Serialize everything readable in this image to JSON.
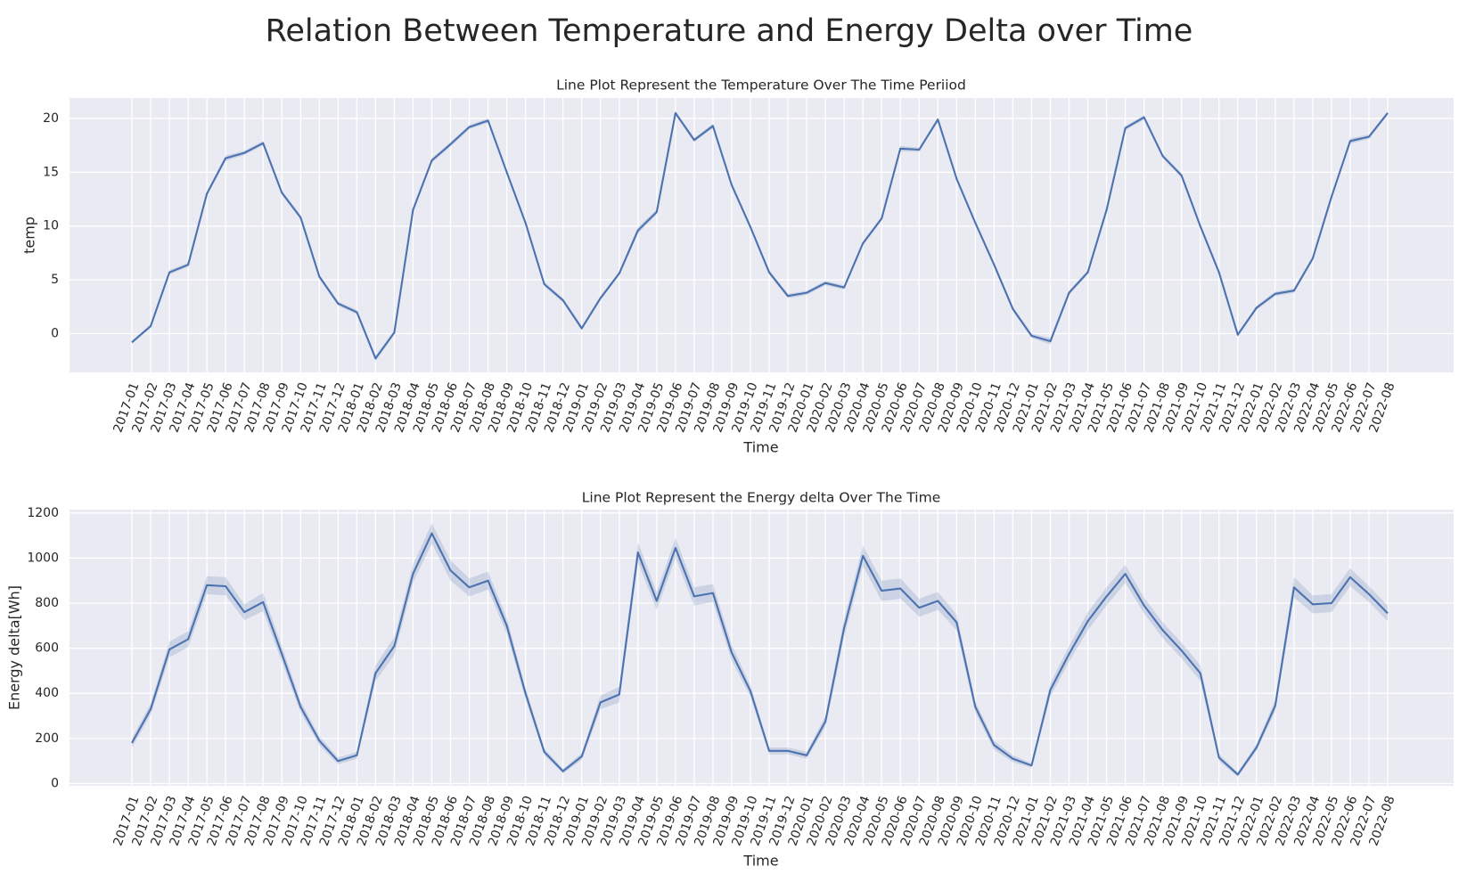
{
  "suptitle": "Relation Between Temperature and Energy Delta over Time",
  "style": {
    "panel_bg": "#eaeaf2",
    "line_color": "#4c72b0",
    "band_color": "#4c72b0"
  },
  "chart_data": [
    {
      "type": "line",
      "title": "Line Plot Represent the Temperature Over The Time Periiod",
      "xlabel": "Time",
      "ylabel": "temp",
      "ylim": [
        -3.6,
        21.9
      ],
      "yticks": [
        0,
        5,
        10,
        15,
        20
      ],
      "grid": true,
      "x": [
        "2017-01",
        "2017-02",
        "2017-03",
        "2017-04",
        "2017-05",
        "2017-06",
        "2017-07",
        "2017-08",
        "2017-09",
        "2017-10",
        "2017-11",
        "2017-12",
        "2018-01",
        "2018-02",
        "2018-03",
        "2018-04",
        "2018-05",
        "2018-06",
        "2018-07",
        "2018-08",
        "2018-09",
        "2018-10",
        "2018-11",
        "2018-12",
        "2019-01",
        "2019-02",
        "2019-03",
        "2019-04",
        "2019-05",
        "2019-06",
        "2019-07",
        "2019-08",
        "2019-09",
        "2019-10",
        "2019-11",
        "2019-12",
        "2020-01",
        "2020-02",
        "2020-03",
        "2020-04",
        "2020-05",
        "2020-06",
        "2020-07",
        "2020-08",
        "2020-09",
        "2020-10",
        "2020-11",
        "2020-12",
        "2021-01",
        "2021-02",
        "2021-03",
        "2021-04",
        "2021-05",
        "2021-06",
        "2021-07",
        "2021-08",
        "2021-09",
        "2021-10",
        "2021-11",
        "2021-12",
        "2022-01",
        "2022-02",
        "2022-03",
        "2022-04",
        "2022-05",
        "2022-06",
        "2022-07",
        "2022-08"
      ],
      "series": [
        {
          "values": [
            -0.8,
            0.7,
            5.7,
            6.4,
            13.0,
            16.3,
            16.8,
            17.7,
            13.1,
            10.8,
            5.3,
            2.8,
            2.0,
            -2.3,
            0.1,
            11.5,
            16.1,
            17.6,
            19.2,
            19.8,
            15.0,
            10.3,
            4.6,
            3.1,
            0.5,
            3.3,
            5.6,
            9.6,
            11.3,
            20.5,
            18.0,
            19.3,
            13.8,
            9.9,
            5.7,
            3.5,
            3.8,
            4.7,
            4.3,
            8.4,
            10.7,
            17.2,
            17.1,
            19.9,
            14.4,
            10.3,
            6.4,
            2.3,
            -0.2,
            -0.7,
            3.8,
            5.7,
            11.5,
            19.1,
            20.1,
            16.5,
            14.7,
            10.0,
            5.7,
            -0.1,
            2.4,
            3.7,
            4.0,
            7.0,
            12.7,
            17.9,
            18.3,
            20.5
          ],
          "ci_halfwidth": [
            0.15,
            0.15,
            0.2,
            0.2,
            0.2,
            0.25,
            0.2,
            0.2,
            0.2,
            0.2,
            0.2,
            0.2,
            0.2,
            0.25,
            0.2,
            0.2,
            0.2,
            0.2,
            0.2,
            0.2,
            0.2,
            0.2,
            0.2,
            0.2,
            0.2,
            0.2,
            0.2,
            0.3,
            0.2,
            0.2,
            0.2,
            0.2,
            0.2,
            0.2,
            0.2,
            0.2,
            0.2,
            0.2,
            0.2,
            0.2,
            0.2,
            0.25,
            0.2,
            0.2,
            0.2,
            0.2,
            0.2,
            0.2,
            0.2,
            0.3,
            0.2,
            0.2,
            0.2,
            0.2,
            0.2,
            0.2,
            0.2,
            0.2,
            0.2,
            0.2,
            0.2,
            0.2,
            0.2,
            0.2,
            0.2,
            0.25,
            0.2,
            0.2
          ]
        }
      ]
    },
    {
      "type": "line",
      "title": "Line Plot Represent the Energy delta Over The Time",
      "xlabel": "Time",
      "ylabel": "Energy delta[Wh]",
      "ylim": [
        -10,
        1215
      ],
      "yticks": [
        0,
        200,
        400,
        600,
        800,
        1000,
        1200
      ],
      "grid": true,
      "x": [
        "2017-01",
        "2017-02",
        "2017-03",
        "2017-04",
        "2017-05",
        "2017-06",
        "2017-07",
        "2017-08",
        "2017-09",
        "2017-10",
        "2017-11",
        "2017-12",
        "2018-01",
        "2018-02",
        "2018-03",
        "2018-04",
        "2018-05",
        "2018-06",
        "2018-07",
        "2018-08",
        "2018-09",
        "2018-10",
        "2018-11",
        "2018-12",
        "2019-01",
        "2019-02",
        "2019-03",
        "2019-04",
        "2019-05",
        "2019-06",
        "2019-07",
        "2019-08",
        "2019-09",
        "2019-10",
        "2019-11",
        "2019-12",
        "2020-01",
        "2020-02",
        "2020-03",
        "2020-04",
        "2020-05",
        "2020-06",
        "2020-07",
        "2020-08",
        "2020-09",
        "2020-10",
        "2020-11",
        "2020-12",
        "2021-01",
        "2021-02",
        "2021-03",
        "2021-04",
        "2021-05",
        "2021-06",
        "2021-07",
        "2021-08",
        "2021-09",
        "2021-10",
        "2021-11",
        "2021-12",
        "2022-01",
        "2022-02",
        "2022-03",
        "2022-04",
        "2022-05",
        "2022-06",
        "2022-07",
        "2022-08"
      ],
      "series": [
        {
          "values": [
            180,
            330,
            595,
            640,
            880,
            875,
            760,
            805,
            575,
            340,
            190,
            100,
            125,
            490,
            610,
            930,
            1110,
            945,
            870,
            900,
            700,
            400,
            140,
            55,
            120,
            360,
            395,
            1025,
            810,
            1045,
            830,
            845,
            580,
            410,
            145,
            145,
            125,
            275,
            690,
            1010,
            855,
            865,
            780,
            810,
            715,
            340,
            170,
            110,
            80,
            415,
            575,
            720,
            830,
            930,
            790,
            680,
            590,
            490,
            115,
            40,
            160,
            345,
            870,
            795,
            800,
            915,
            840,
            755
          ],
          "ci_halfwidth": [
            20,
            25,
            35,
            35,
            40,
            40,
            35,
            40,
            35,
            25,
            20,
            15,
            15,
            35,
            40,
            40,
            45,
            45,
            40,
            40,
            35,
            25,
            15,
            10,
            15,
            30,
            35,
            45,
            40,
            45,
            40,
            40,
            35,
            25,
            15,
            15,
            15,
            25,
            40,
            45,
            45,
            45,
            40,
            40,
            35,
            25,
            20,
            15,
            10,
            30,
            35,
            40,
            40,
            40,
            35,
            35,
            35,
            35,
            15,
            10,
            15,
            25,
            45,
            40,
            40,
            40,
            35,
            35
          ]
        }
      ]
    }
  ]
}
